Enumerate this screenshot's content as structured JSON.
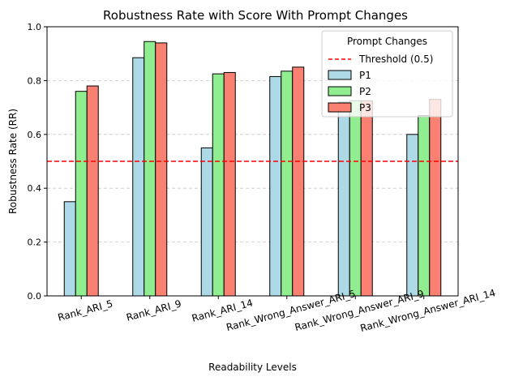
{
  "chart_data": {
    "type": "bar",
    "title": "Robustness Rate with Score With Prompt Changes",
    "xlabel": "Readability Levels",
    "ylabel": "Robustness Rate (RR)",
    "ylim": [
      0,
      1.0
    ],
    "yticks": [
      "0.0",
      "0.2",
      "0.4",
      "0.6",
      "0.8",
      "1.0"
    ],
    "grid": "horizontal-dashed",
    "categories": [
      "Rank_ARI_5",
      "Rank_ARI_9",
      "Rank_ARI_14",
      "Rank_Wrong_Answer_ARI_5",
      "Rank_Wrong_Answer_ARI_9",
      "Rank_Wrong_Answer_ARI_14"
    ],
    "series": [
      {
        "name": "P1",
        "color": "#add8e6",
        "values": [
          0.35,
          0.885,
          0.55,
          0.815,
          0.72,
          0.6
        ]
      },
      {
        "name": "P2",
        "color": "#90ee90",
        "values": [
          0.76,
          0.945,
          0.825,
          0.835,
          0.725,
          0.67
        ]
      },
      {
        "name": "P3",
        "color": "#fa8072",
        "values": [
          0.78,
          0.94,
          0.83,
          0.85,
          0.725,
          0.73
        ]
      }
    ],
    "threshold": {
      "label": "Threshold (0.5)",
      "value": 0.5,
      "color": "#ff0000"
    },
    "legend": {
      "title": "Prompt Changes",
      "placement": "top-right"
    }
  }
}
